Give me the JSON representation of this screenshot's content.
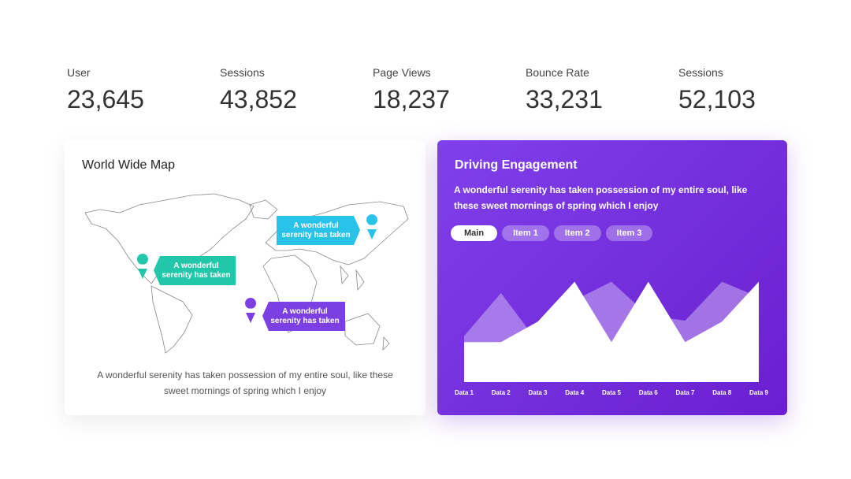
{
  "stats": [
    {
      "label": "User",
      "value": "23,645"
    },
    {
      "label": "Sessions",
      "value": "43,852"
    },
    {
      "label": "Page Views",
      "value": "18,237"
    },
    {
      "label": "Bounce Rate",
      "value": "33,231"
    },
    {
      "label": "Sessions",
      "value": "52,103"
    }
  ],
  "map_card": {
    "title": "World Wide Map",
    "callouts": [
      "A wonderful serenity has taken",
      "A wonderful serenity has taken",
      "A wonderful serenity has taken"
    ],
    "caption": "A wonderful serenity has taken possession of my entire soul, like these sweet mornings of spring which I enjoy"
  },
  "engagement": {
    "title": "Driving Engagement",
    "description": "A wonderful serenity has taken possession of my entire soul, like these sweet mornings of spring which I enjoy",
    "tabs": [
      "Main",
      "Item 1",
      "Item 2",
      "Item 3"
    ]
  },
  "chart_data": {
    "type": "area",
    "categories": [
      "Data 1",
      "Data 2",
      "Data 3",
      "Data 4",
      "Data 5",
      "Data 6",
      "Data 7",
      "Data 8",
      "Data 9"
    ],
    "series": [
      {
        "color": "rgba(255,255,255,0.35)",
        "values": [
          45,
          87,
          39,
          80,
          98,
          65,
          60,
          98,
          83
        ]
      },
      {
        "color": "#ffffff",
        "values": [
          39,
          39,
          59,
          98,
          39,
          98,
          39,
          59,
          98
        ]
      }
    ],
    "ylim": [
      0,
      100
    ]
  }
}
